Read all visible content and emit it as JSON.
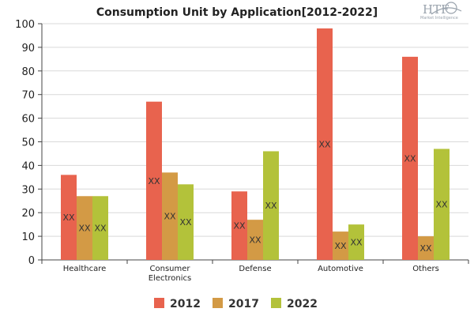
{
  "logo": {
    "text": "HTF",
    "subtitle": "Market Intelligence"
  },
  "chart_data": {
    "type": "bar",
    "title": "Consumption Unit by  Application[2012-2022]",
    "xlabel": "",
    "ylabel": "",
    "ylim": [
      0,
      100
    ],
    "yticks": [
      0,
      10,
      20,
      30,
      40,
      50,
      60,
      70,
      80,
      90,
      100
    ],
    "categories": [
      "Healthcare",
      "Consumer Electronics",
      "Defense",
      "Automotive",
      "Others"
    ],
    "category_label_lines": [
      [
        "Healthcare"
      ],
      [
        "Consumer",
        "Electronics"
      ],
      [
        "Defense"
      ],
      [
        "Automotive"
      ],
      [
        "Others"
      ]
    ],
    "series": [
      {
        "name": "2012",
        "color": "#e8634e",
        "values": [
          36,
          67,
          29,
          98,
          86
        ]
      },
      {
        "name": "2017",
        "color": "#d39a45",
        "values": [
          27,
          37,
          17,
          12,
          10
        ]
      },
      {
        "name": "2022",
        "color": "#b3c23a",
        "values": [
          27,
          32,
          46,
          15,
          47
        ]
      }
    ],
    "data_label_text": "XX",
    "grid": true,
    "legend_position": "bottom"
  }
}
